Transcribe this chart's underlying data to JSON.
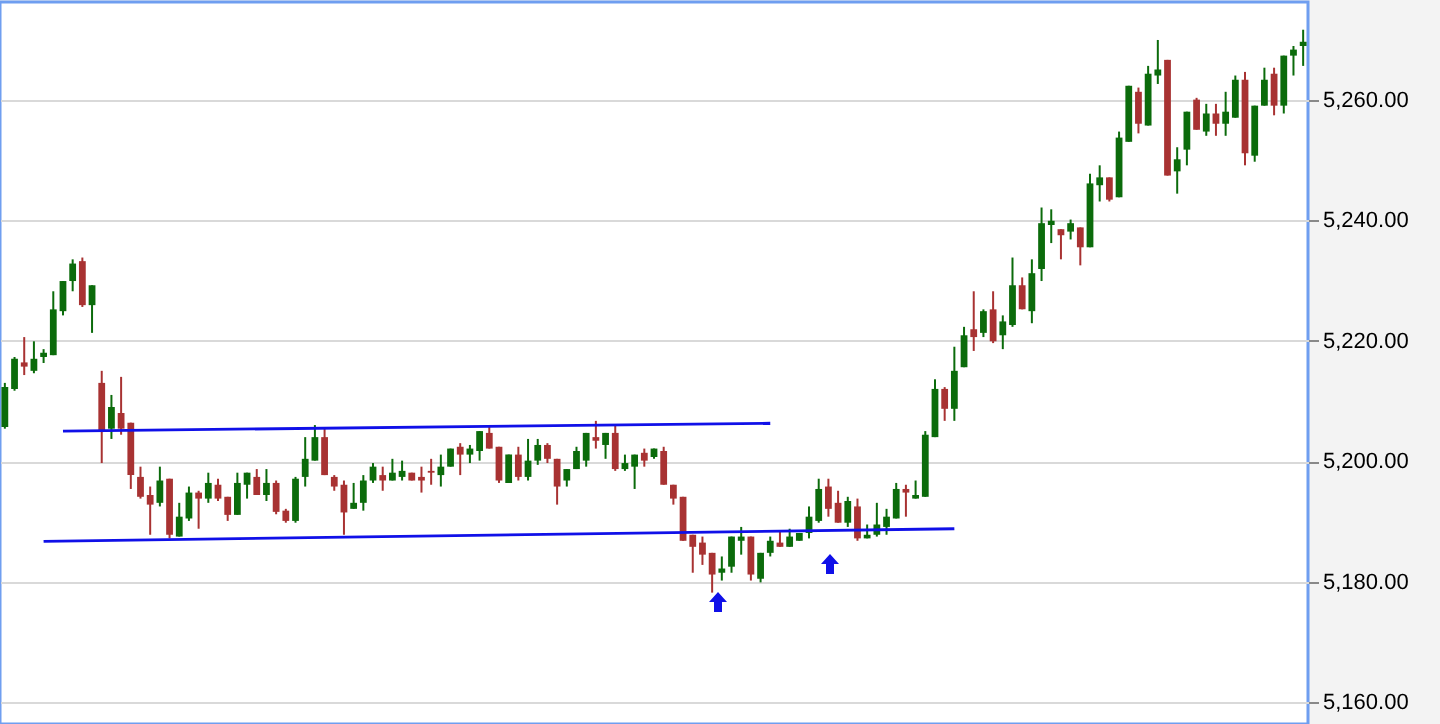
{
  "chart_data": {
    "type": "candlestick",
    "categories": [
      null,
      null,
      null,
      null,
      null,
      null,
      null,
      null,
      null,
      null,
      null,
      null,
      null,
      null,
      null,
      null,
      null,
      null,
      null,
      null,
      null,
      null,
      null,
      null,
      null,
      null,
      null,
      null,
      null,
      null,
      null,
      null,
      null,
      null,
      null,
      null,
      null,
      null,
      null,
      null,
      null,
      null,
      null,
      null,
      null,
      null,
      null,
      null,
      null,
      null,
      null,
      null,
      null,
      null,
      null,
      null,
      null,
      null,
      null,
      null,
      null,
      null,
      null,
      null,
      null,
      null,
      null,
      null,
      null,
      null,
      null,
      null,
      null,
      null,
      null,
      null,
      null,
      null,
      null,
      null,
      null,
      null,
      null,
      null,
      null,
      null,
      null,
      null,
      null,
      null,
      null,
      null,
      null,
      null,
      null,
      null,
      null,
      null,
      null,
      null,
      null,
      null,
      null,
      null,
      null,
      null,
      null,
      null,
      null,
      null,
      null,
      null,
      null,
      null,
      null,
      null,
      null,
      null,
      null,
      null,
      null,
      null,
      null,
      null,
      null,
      null,
      null,
      null,
      null,
      null,
      null,
      null,
      null,
      null,
      null
    ],
    "ohlc": [
      [
        5205.7,
        5213,
        5205.4,
        5212.3
      ],
      [
        5212,
        5217.3,
        5211.7,
        5217
      ],
      [
        5216.4,
        5220.6,
        5214.3,
        5215.7
      ],
      [
        5215,
        5219.9,
        5214.6,
        5217
      ],
      [
        5217.3,
        5218.6,
        5216.3,
        5218
      ],
      [
        5217.6,
        5228.2,
        5217.6,
        5225.2
      ],
      [
        5224.9,
        5229.9,
        5224.2,
        5229.9
      ],
      [
        5229.9,
        5233.5,
        5228.2,
        5232.8
      ],
      [
        5233.2,
        5233.8,
        5225.6,
        5225.9
      ],
      [
        5225.9,
        5229.2,
        5221.3,
        5229.2
      ],
      [
        5213,
        5215,
        5199.7,
        5205
      ],
      [
        5205.4,
        5211,
        5203.7,
        5209
      ],
      [
        5208,
        5214,
        5204.4,
        5205.4
      ],
      [
        5206.4,
        5206.4,
        5195.4,
        5197.7
      ],
      [
        5197.4,
        5199.1,
        5193.8,
        5194.1
      ],
      [
        5194.4,
        5195.8,
        5187.8,
        5192.8
      ],
      [
        5193.1,
        5199.1,
        5192.5,
        5196.8
      ],
      [
        5197.1,
        5197.1,
        5187.2,
        5187.8
      ],
      [
        5187.5,
        5193.1,
        5187.5,
        5190.8
      ],
      [
        5190.5,
        5195.8,
        5190.1,
        5194.8
      ],
      [
        5194.8,
        5195.1,
        5188.8,
        5193.8
      ],
      [
        5193.8,
        5198.1,
        5193.1,
        5196.4
      ],
      [
        5196.1,
        5197.1,
        5193.4,
        5193.8
      ],
      [
        5194.1,
        5194.1,
        5190.1,
        5191.1
      ],
      [
        5191.1,
        5198.1,
        5191.1,
        5196.4
      ],
      [
        5196.1,
        5198.1,
        5193.8,
        5198.1
      ],
      [
        5197.4,
        5198.7,
        5194.4,
        5194.4
      ],
      [
        5194.4,
        5198.7,
        5193.4,
        5196.4
      ],
      [
        5196.4,
        5196.8,
        5191.2,
        5191.6
      ],
      [
        5191.8,
        5192.1,
        5189.8,
        5190.1
      ],
      [
        5190.1,
        5197.4,
        5189.8,
        5197.1
      ],
      [
        5197.4,
        5204,
        5195.8,
        5200.4
      ],
      [
        5200.1,
        5206,
        5200.1,
        5204
      ],
      [
        5204,
        5205.4,
        5197.7,
        5197.7
      ],
      [
        5197.4,
        5197.7,
        5195.1,
        5195.8
      ],
      [
        5196.1,
        5196.8,
        5187.8,
        5191.5
      ],
      [
        5192.1,
        5196.4,
        5192.1,
        5193.1
      ],
      [
        5193.1,
        5197.7,
        5191.8,
        5196.8
      ],
      [
        5196.8,
        5199.7,
        5196.4,
        5199.1
      ],
      [
        5197.7,
        5199.1,
        5195.1,
        5196.8
      ],
      [
        5196.8,
        5200.4,
        5196.8,
        5198.1
      ],
      [
        5197.4,
        5200.1,
        5196.8,
        5198.4
      ],
      [
        5198.1,
        5198.1,
        5196.8,
        5196.8
      ],
      [
        5197.4,
        5199.1,
        5194.8,
        5196.8
      ],
      [
        5198.4,
        5200.4,
        5196.1,
        5198.1
      ],
      [
        5197.7,
        5201.1,
        5195.8,
        5199.1
      ],
      [
        5199.1,
        5202.1,
        5199.1,
        5202.1
      ],
      [
        5202.4,
        5203,
        5197.7,
        5201.1
      ],
      [
        5201.1,
        5202.7,
        5199.7,
        5202.1
      ],
      [
        5201.7,
        5205,
        5200.1,
        5205
      ],
      [
        5204.7,
        5205.7,
        5202.1,
        5202.1
      ],
      [
        5202.4,
        5202.4,
        5196.4,
        5196.8
      ],
      [
        5196.4,
        5201.1,
        5196.4,
        5201.1
      ],
      [
        5201.1,
        5202.4,
        5196.8,
        5197.4
      ],
      [
        5197.4,
        5203.7,
        5196.8,
        5200.1
      ],
      [
        5200.1,
        5203.7,
        5199.4,
        5202.7
      ],
      [
        5202.7,
        5203,
        5199.7,
        5200.4
      ],
      [
        5200.4,
        5200.4,
        5192.8,
        5195.8
      ],
      [
        5196.8,
        5198.7,
        5195.8,
        5198.7
      ],
      [
        5198.7,
        5202.4,
        5198.7,
        5201.7
      ],
      [
        5200.1,
        5204.7,
        5199.1,
        5204.7
      ],
      [
        5204,
        5206.7,
        5202.1,
        5203.4
      ],
      [
        5202.7,
        5204.7,
        5200.4,
        5204.7
      ],
      [
        5204.7,
        5206,
        5198.4,
        5198.7
      ],
      [
        5198.7,
        5201.1,
        5198.4,
        5199.7
      ],
      [
        5199.1,
        5201.1,
        5195.4,
        5201.1
      ],
      [
        5201.4,
        5202.1,
        5199.1,
        5200.1
      ],
      [
        5200.7,
        5202.1,
        5200.4,
        5202.1
      ],
      [
        5201.7,
        5202.4,
        5196.1,
        5196.1
      ],
      [
        5196.1,
        5196.1,
        5192.8,
        5193.8
      ],
      [
        5194.1,
        5194.1,
        5186.8,
        5186.8
      ],
      [
        5187.8,
        5187.8,
        5181.5,
        5185.8
      ],
      [
        5186.5,
        5187.5,
        5182.8,
        5184.5
      ],
      [
        5184.8,
        5184.8,
        5178.2,
        5181.2
      ],
      [
        5181.5,
        5184.2,
        5180.2,
        5182.2
      ],
      [
        5182.5,
        5187.5,
        5181.5,
        5187.5
      ],
      [
        5186.8,
        5189.1,
        5184.5,
        5187.5
      ],
      [
        5187.5,
        5187.5,
        5180.2,
        5181.2
      ],
      [
        5180.5,
        5184.8,
        5179.9,
        5184.8
      ],
      [
        5184.8,
        5187.5,
        5184.2,
        5186.8
      ],
      [
        5186.5,
        5188.5,
        5185.8,
        5185.8
      ],
      [
        5185.8,
        5188.8,
        5185.8,
        5187.5
      ],
      [
        5186.8,
        5188.1,
        5186.8,
        5188.1
      ],
      [
        5188.1,
        5192.5,
        5187.2,
        5190.8
      ],
      [
        5190.1,
        5197.1,
        5189.8,
        5195.4
      ],
      [
        5195.8,
        5197.1,
        5190.8,
        5192.1
      ],
      [
        5193.1,
        5195.1,
        5189.8,
        5189.8
      ],
      [
        5189.8,
        5194.1,
        5189.1,
        5193.4
      ],
      [
        5192.5,
        5193.8,
        5186.8,
        5187.2
      ],
      [
        5187.2,
        5189.5,
        5187.2,
        5187.8
      ],
      [
        5187.8,
        5193.1,
        5187.5,
        5189.5
      ],
      [
        5189.1,
        5192.1,
        5187.8,
        5190.8
      ],
      [
        5190.5,
        5196.4,
        5190.5,
        5195.4
      ],
      [
        5195.4,
        5196.1,
        5190.8,
        5194.8
      ],
      [
        5193.8,
        5196.8,
        5193.8,
        5194.4
      ],
      [
        5194.1,
        5205,
        5194.1,
        5204.4
      ],
      [
        5204,
        5213.6,
        5204,
        5212
      ],
      [
        5212,
        5212.3,
        5206.7,
        5208.7
      ],
      [
        5208.7,
        5219,
        5206.7,
        5215
      ],
      [
        5215.6,
        5222.3,
        5215.6,
        5220.9
      ],
      [
        5221.9,
        5228.2,
        5218.3,
        5220.6
      ],
      [
        5221.3,
        5225.2,
        5220.6,
        5224.9
      ],
      [
        5225.2,
        5228.2,
        5219.6,
        5219.9
      ],
      [
        5220.9,
        5224.2,
        5218.6,
        5223.2
      ],
      [
        5222.6,
        5233.8,
        5222.3,
        5229.2
      ],
      [
        5229.2,
        5230.5,
        5225.2,
        5225.2
      ],
      [
        5224.9,
        5233.5,
        5222.9,
        5231.2
      ],
      [
        5231.9,
        5242.1,
        5229.9,
        5239.5
      ],
      [
        5239.2,
        5241.8,
        5236.2,
        5239.9
      ],
      [
        5238.5,
        5238.5,
        5233.5,
        5237.5
      ],
      [
        5238.1,
        5240.1,
        5236.8,
        5239.5
      ],
      [
        5238.8,
        5238.8,
        5232.5,
        5235.5
      ],
      [
        5235.5,
        5247.7,
        5235.5,
        5246.1
      ],
      [
        5245.8,
        5249.1,
        5243.1,
        5247.1
      ],
      [
        5247.1,
        5247.1,
        5243.1,
        5243.4
      ],
      [
        5243.8,
        5254.7,
        5243.8,
        5253.7
      ],
      [
        5253,
        5262.3,
        5253,
        5262.3
      ],
      [
        5261.3,
        5262,
        5254.4,
        5256
      ],
      [
        5255.7,
        5265.6,
        5255.7,
        5264.3
      ],
      [
        5264,
        5269.9,
        5262.6,
        5265
      ],
      [
        5266.6,
        5266.6,
        5247.4,
        5247.4
      ],
      [
        5248.1,
        5252.1,
        5244.4,
        5250.1
      ],
      [
        5251.7,
        5258,
        5249.1,
        5258
      ],
      [
        5260,
        5260.3,
        5255,
        5255
      ],
      [
        5254.7,
        5259.3,
        5254,
        5257.7
      ],
      [
        5257.7,
        5259.3,
        5254,
        5256
      ],
      [
        5256,
        5261.3,
        5254,
        5258
      ],
      [
        5257,
        5264,
        5257,
        5263.3
      ],
      [
        5263.3,
        5264.6,
        5249.1,
        5251.1
      ],
      [
        5250.7,
        5259,
        5249.7,
        5259
      ],
      [
        5259,
        5265.3,
        5259,
        5263.3
      ],
      [
        5264.3,
        5265.3,
        5257.4,
        5259
      ],
      [
        5259,
        5267.3,
        5257.7,
        5267.3
      ],
      [
        5267.3,
        5268.9,
        5264,
        5268.3
      ],
      [
        5268.9,
        5271.6,
        5265.6,
        5269.6
      ]
    ],
    "colors": [
      "#0b6b0b",
      "#0b6b0b",
      "#a83232",
      "#0b6b0b",
      "#0b6b0b",
      "#0b6b0b",
      "#0b6b0b",
      "#0b6b0b",
      "#a83232",
      "#0b6b0b",
      "#a83232",
      "#0b6b0b",
      "#a83232",
      "#a83232",
      "#a83232",
      "#a83232",
      "#0b6b0b",
      "#a83232",
      "#0b6b0b",
      "#0b6b0b",
      "#a83232",
      "#0b6b0b",
      "#a83232",
      "#a83232",
      "#0b6b0b",
      "#0b6b0b",
      "#a83232",
      "#0b6b0b",
      "#a83232",
      "#a83232",
      "#0b6b0b",
      "#0b6b0b",
      "#0b6b0b",
      "#a83232",
      "#a83232",
      "#a83232",
      "#0b6b0b",
      "#0b6b0b",
      "#0b6b0b",
      "#a83232",
      "#0b6b0b",
      "#0b6b0b",
      "#a83232",
      "#a83232",
      "#a83232",
      "#0b6b0b",
      "#0b6b0b",
      "#a83232",
      "#0b6b0b",
      "#0b6b0b",
      "#a83232",
      "#a83232",
      "#0b6b0b",
      "#a83232",
      "#0b6b0b",
      "#0b6b0b",
      "#a83232",
      "#a83232",
      "#0b6b0b",
      "#0b6b0b",
      "#0b6b0b",
      "#a83232",
      "#0b6b0b",
      "#a83232",
      "#0b6b0b",
      "#0b6b0b",
      "#a83232",
      "#0b6b0b",
      "#a83232",
      "#a83232",
      "#a83232",
      "#a83232",
      "#a83232",
      "#a83232",
      "#0b6b0b",
      "#0b6b0b",
      "#0b6b0b",
      "#a83232",
      "#0b6b0b",
      "#0b6b0b",
      "#a83232",
      "#0b6b0b",
      "#0b6b0b",
      "#0b6b0b",
      "#0b6b0b",
      "#a83232",
      "#a83232",
      "#0b6b0b",
      "#a83232",
      "#0b6b0b",
      "#0b6b0b",
      "#0b6b0b",
      "#0b6b0b",
      "#a83232",
      "#0b6b0b",
      "#0b6b0b",
      "#0b6b0b",
      "#a83232",
      "#0b6b0b",
      "#0b6b0b",
      "#a83232",
      "#0b6b0b",
      "#a83232",
      "#0b6b0b",
      "#0b6b0b",
      "#a83232",
      "#0b6b0b",
      "#0b6b0b",
      "#0b6b0b",
      "#a83232",
      "#0b6b0b",
      "#a83232",
      "#0b6b0b",
      "#0b6b0b",
      "#a83232",
      "#0b6b0b",
      "#0b6b0b",
      "#a83232",
      "#0b6b0b",
      "#0b6b0b",
      "#a83232",
      "#0b6b0b",
      "#0b6b0b",
      "#a83232",
      "#0b6b0b",
      "#a83232",
      "#0b6b0b",
      "#0b6b0b",
      "#a83232",
      "#0b6b0b",
      "#0b6b0b",
      "#a83232",
      "#0b6b0b",
      "#0b6b0b",
      "#0b6b0b"
    ],
    "series": [
      {
        "type": "line",
        "values": [
          null,
          null,
          null,
          null,
          null,
          null,
          5205.0,
          null,
          null,
          null,
          null,
          null,
          null,
          null,
          null,
          null,
          null,
          null,
          null,
          null,
          null,
          null,
          null,
          null,
          null,
          null,
          null,
          null,
          null,
          null,
          null,
          null,
          null,
          null,
          null,
          null,
          null,
          null,
          null,
          null,
          null,
          null,
          null,
          null,
          null,
          null,
          null,
          null,
          null,
          null,
          null,
          null,
          null,
          null,
          null,
          null,
          null,
          null,
          null,
          null,
          null,
          null,
          null,
          null,
          null,
          null,
          null,
          null,
          null,
          null,
          null,
          null,
          null,
          null,
          null,
          null,
          null,
          null,
          null,
          5206.3,
          null,
          null,
          null,
          null,
          null,
          null,
          null,
          null,
          null,
          null,
          null,
          null,
          null,
          null,
          null,
          null,
          null,
          null,
          null,
          null,
          null,
          null,
          null,
          null,
          null,
          null,
          null,
          null,
          null,
          null,
          null,
          null,
          null,
          null,
          null,
          null,
          null,
          null,
          null,
          null,
          null,
          null,
          null,
          null,
          null,
          null,
          null,
          null,
          null,
          null,
          null,
          null,
          null,
          null,
          null
        ],
        "color": "#1010e8"
      },
      {
        "type": "line",
        "values": [
          null,
          null,
          null,
          null,
          5186.7,
          null,
          null,
          null,
          null,
          null,
          null,
          null,
          null,
          null,
          null,
          null,
          null,
          null,
          null,
          null,
          null,
          null,
          null,
          null,
          null,
          null,
          null,
          null,
          null,
          null,
          null,
          null,
          null,
          null,
          null,
          null,
          null,
          null,
          null,
          null,
          null,
          null,
          null,
          null,
          null,
          null,
          null,
          null,
          null,
          null,
          null,
          null,
          null,
          null,
          null,
          null,
          null,
          null,
          null,
          null,
          null,
          null,
          null,
          null,
          null,
          null,
          null,
          null,
          null,
          null,
          null,
          null,
          null,
          null,
          null,
          null,
          null,
          null,
          null,
          null,
          null,
          null,
          null,
          null,
          null,
          null,
          null,
          null,
          null,
          null,
          null,
          null,
          null,
          null,
          null,
          null,
          null,
          null,
          5188.8,
          null,
          null,
          null,
          null,
          null,
          null,
          null,
          null,
          null,
          null,
          null,
          null,
          null,
          null,
          null,
          null,
          null,
          null,
          null,
          null,
          null,
          null,
          null,
          null,
          null,
          null,
          null,
          null,
          null,
          null,
          null,
          null,
          null,
          null,
          null,
          null
        ],
        "color": "#1010e8"
      }
    ],
    "ylim": [
      5156.4,
      5276.2
    ],
    "yticks": [
      {
        "value": 5160,
        "label": "5,160.00"
      },
      {
        "value": 5180,
        "label": "5,180.00"
      },
      {
        "value": 5200,
        "label": "5,200.00"
      },
      {
        "value": 5220,
        "label": "5,220.00"
      },
      {
        "value": 5240,
        "label": "5,240.00"
      },
      {
        "value": 5260,
        "label": "5,260.00"
      }
    ],
    "grid": "y",
    "tick_labels": "y"
  }
}
